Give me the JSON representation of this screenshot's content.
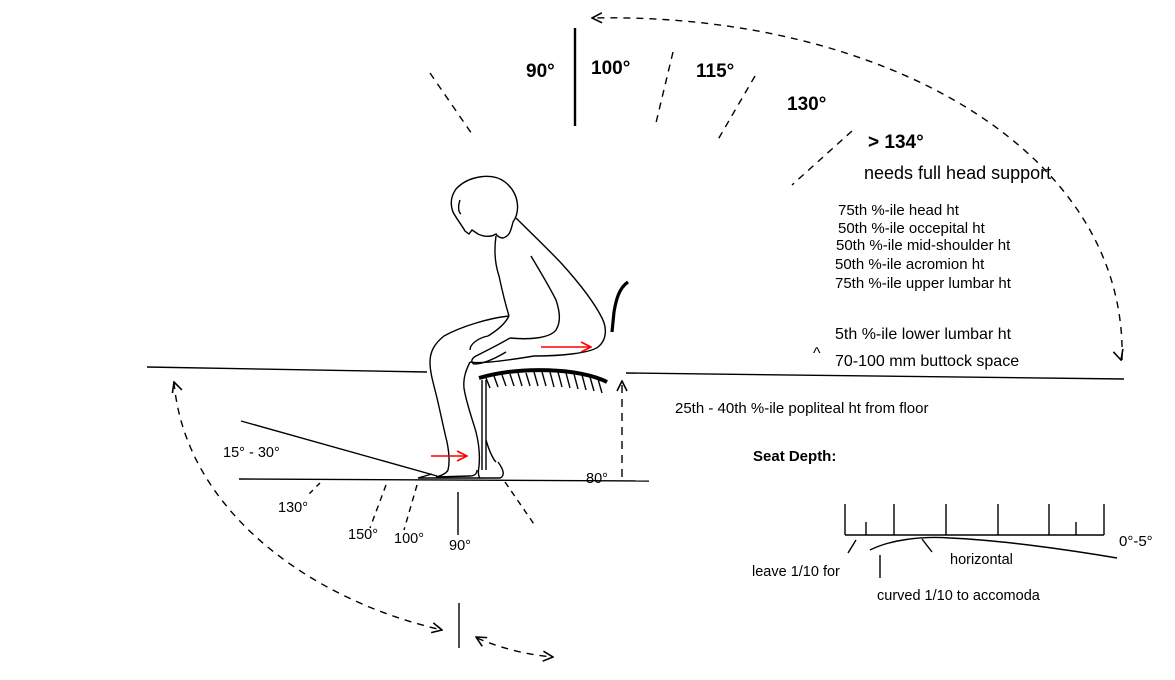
{
  "recline_angles": {
    "a90": "90°",
    "a100": "100°",
    "a115": "115°",
    "a130": "130°",
    "a134": "> 134°",
    "note": "needs full head support"
  },
  "back_heights": [
    "75th %-ile head ht",
    "50th %-ile occepital ht",
    "50th %-ile mid-shoulder ht",
    "50th %-ile acromion ht",
    "75th %-ile upper lumbar ht"
  ],
  "lower_lumbar": "5th %-ile lower lumbar ht",
  "caret": "^",
  "buttock_space": "70-100 mm buttock space",
  "popliteal": "25th - 40th %-ile popliteal ht from floor",
  "knee_angle": "80°",
  "footrest": {
    "incline": "15° - 30°",
    "a130": "130°",
    "a150": "150°",
    "a100": "100°",
    "a90": "90°"
  },
  "seat_depth": {
    "title": "Seat Depth:",
    "slope": "0°-5°",
    "horizontal": "horizontal",
    "leave": "leave 1/10 for",
    "curved": "curved 1/10 to accomoda"
  },
  "colors": {
    "arrow": "#ff0000",
    "ink": "#000000"
  }
}
